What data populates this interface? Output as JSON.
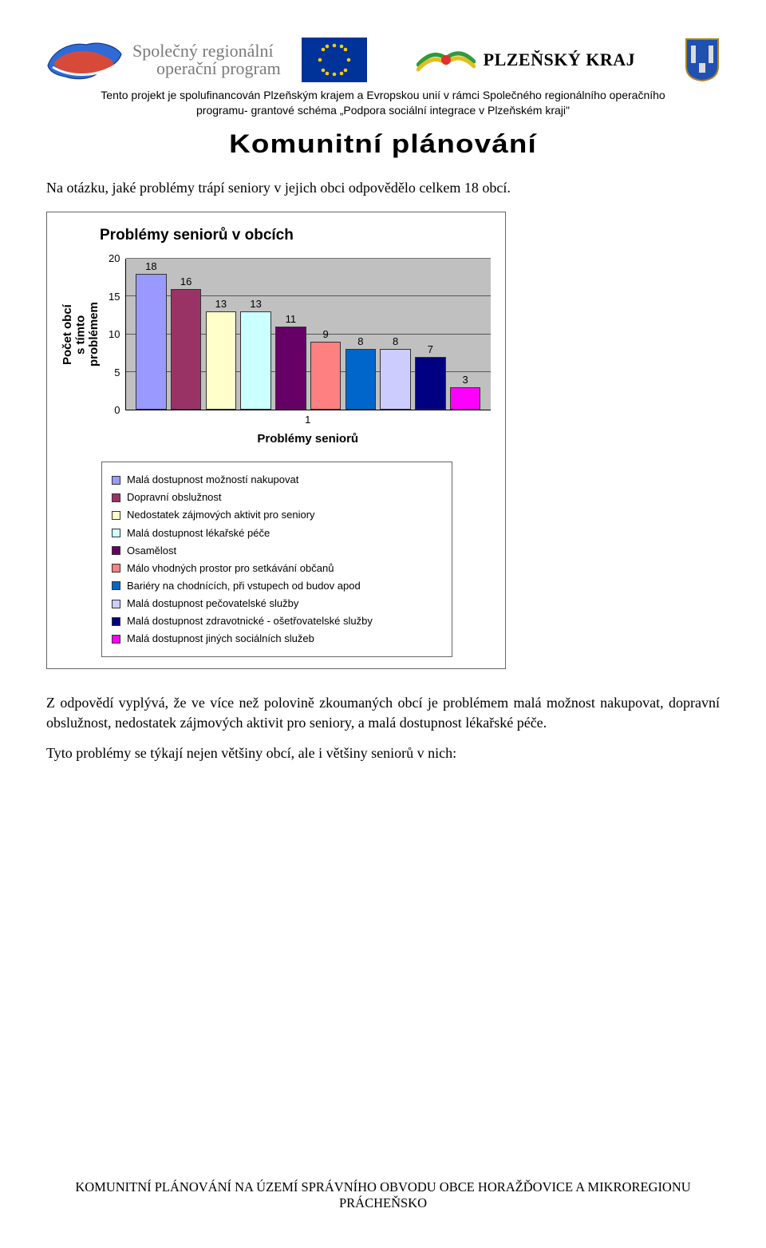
{
  "header": {
    "srop_line1": "Společný regionální",
    "srop_line2": "operační program",
    "pk_label": "PLZEŇSKÝ KRAJ",
    "subsidize_note_l1": "Tento projekt je spolufinancován Plzeňským krajem a Evropskou unií v rámci Společného regionálního operačního",
    "subsidize_note_l2": "programu- grantové schéma „Podpora sociální integrace v Plzeňském kraji\"",
    "main_heading": "Komunitní plánování"
  },
  "intro_text": "Na otázku, jaké problémy trápí seniory v jejich obci odpovědělo celkem 18 obcí.",
  "chart": {
    "type": "bar",
    "title": "Problémy seniorů v obcích",
    "y_label": "Počet obcí\ns tímto\nproblémem",
    "x_label": "Problémy seniorů",
    "ylim": [
      0,
      20
    ],
    "ytick_step": 5,
    "yticks": [
      "20",
      "15",
      "10",
      "5",
      "0"
    ],
    "x_category": "1",
    "plot_bg": "#c0c0c0",
    "grid_color": "#000000",
    "series": [
      {
        "value": 18,
        "color": "#9999ff",
        "label": "Malá dostupnost možností nakupovat"
      },
      {
        "value": 16,
        "color": "#993366",
        "label": "Dopravní obslužnost"
      },
      {
        "value": 13,
        "color": "#ffffcc",
        "label": "Nedostatek zájmových aktivit pro seniory"
      },
      {
        "value": 13,
        "color": "#ccffff",
        "label": "Malá dostupnost lékařské péče"
      },
      {
        "value": 11,
        "color": "#660066",
        "label": "Osamělost"
      },
      {
        "value": 9,
        "color": "#ff8080",
        "label": "Málo vhodných prostor pro setkávání občanů"
      },
      {
        "value": 8,
        "color": "#0066cc",
        "label": "Bariéry na chodnících, při vstupech od budov apod"
      },
      {
        "value": 8,
        "color": "#ccccff",
        "label": "Malá dostupnost pečovatelské služby"
      },
      {
        "value": 7,
        "color": "#000080",
        "label": "Malá dostupnost zdravotnické - ošetřovatelské služby"
      },
      {
        "value": 3,
        "color": "#ff00ff",
        "label": "Malá dostupnost jiných sociálních služeb"
      }
    ],
    "value_label_fontsize": 13,
    "axis_label_fontsize": 15,
    "title_fontsize": 19
  },
  "para1": "Z odpovědí vyplývá, že ve více než polovině zkoumaných obcí je problémem malá možnost nakupovat, dopravní obslužnost, nedostatek zájmových aktivit pro seniory, a malá dostupnost lékařské péče.",
  "para2": "Tyto problémy se týkají nejen většiny obcí, ale i většiny seniorů v nich:",
  "footer_l1": "KOMUNITNÍ PLÁNOVÁNÍ NA ÚZEMÍ SPRÁVNÍHO OBVODU OBCE HORAŽĎOVICE A MIKROREGIONU",
  "footer_l2": "PRÁCHEŇSKO"
}
